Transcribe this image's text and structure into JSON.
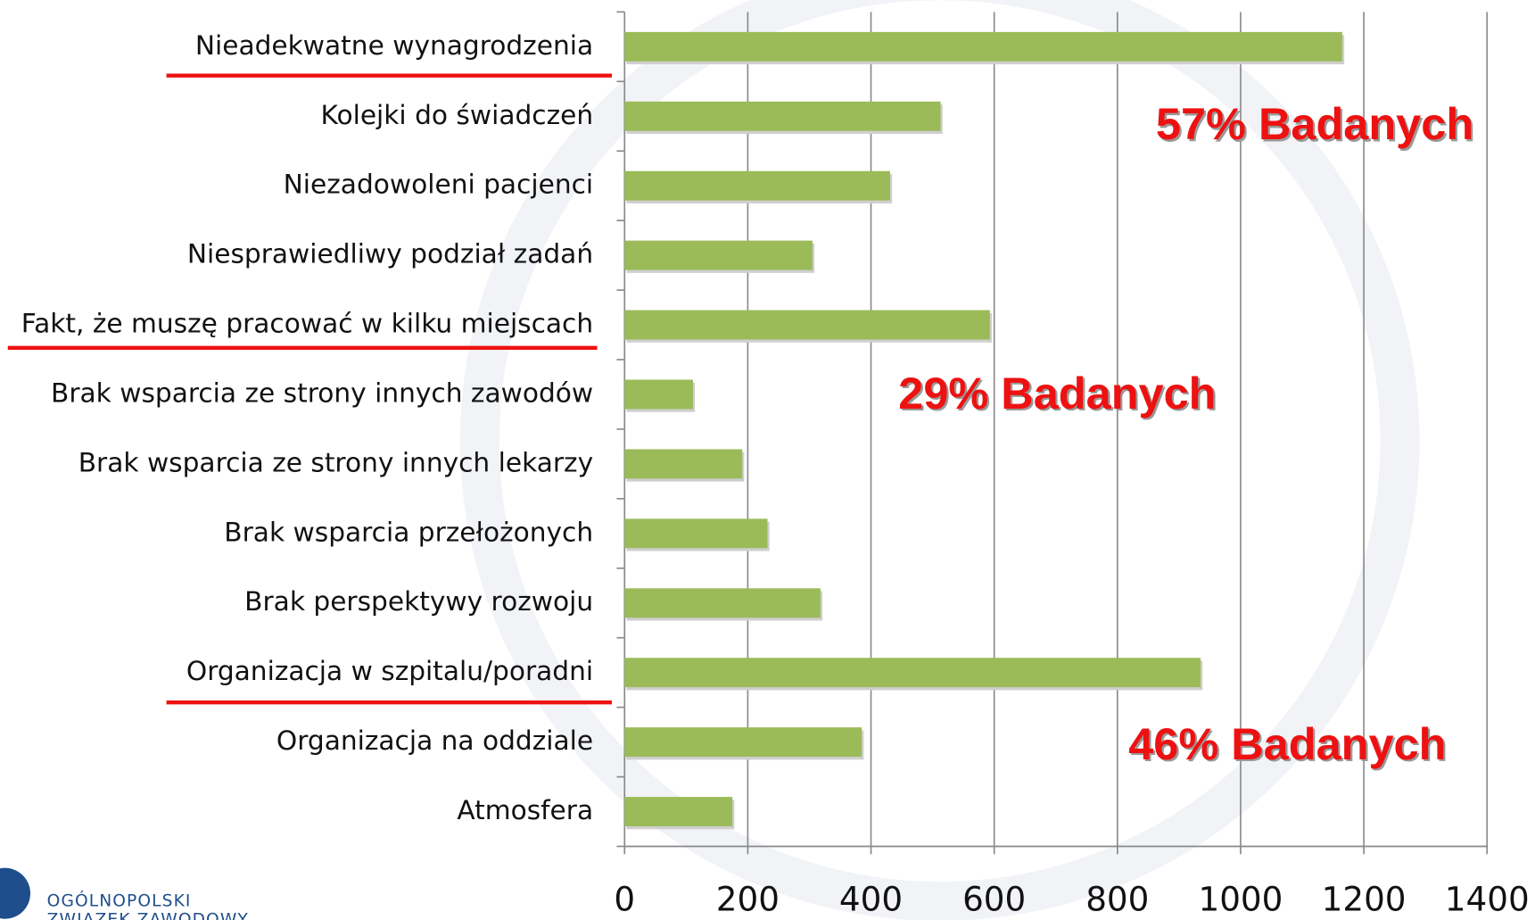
{
  "chart_data": {
    "type": "bar",
    "orientation": "horizontal",
    "categories": [
      "Nieadekwatne wynagrodzenia",
      "Kolejki do świadczeń",
      "Niezadowoleni pacjenci",
      "Niesprawiedliwy podział zadań",
      "Fakt, że muszę pracować w kilku miejscach",
      "Brak wsparcia ze strony innych zawodów",
      "Brak wsparcia ze strony innych lekarzy",
      "Brak wsparcia przełożonych",
      "Brak perspektywy rozwoju",
      "Organizacja w szpitalu/poradni",
      "Organizacja na oddziale",
      "Atmosfera"
    ],
    "values": [
      1165,
      513,
      431,
      305,
      593,
      111,
      191,
      232,
      318,
      935,
      385,
      175
    ],
    "color": "#9bbb59",
    "xlim": [
      0,
      1400
    ],
    "xticks": [
      0,
      200,
      400,
      600,
      800,
      1000,
      1200,
      1400
    ],
    "grid": true,
    "annotations": [
      "57% Badanych",
      "29% Badanych",
      "46% Badanych"
    ]
  },
  "logo": [
    "OGÓLNOPOLSKI",
    "ZWIĄZEK ZAWODOWY"
  ]
}
